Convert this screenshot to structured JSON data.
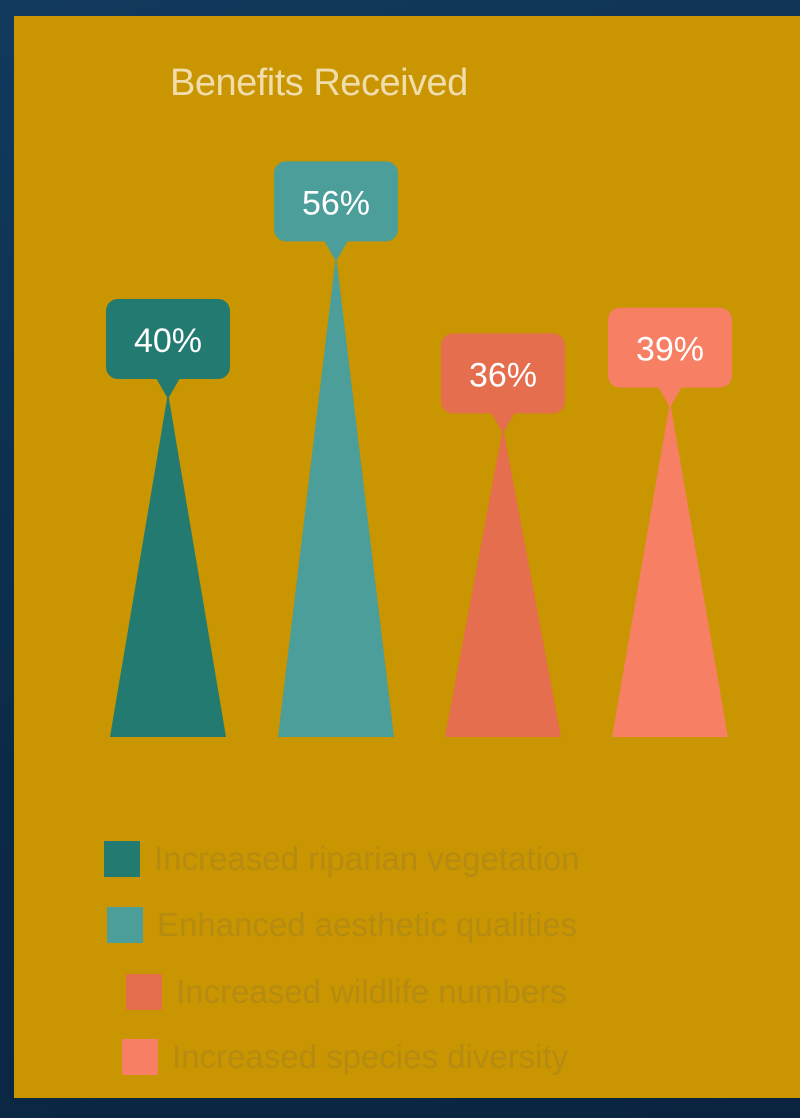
{
  "chart_data": {
    "type": "bar",
    "title": "Benefits Received",
    "categories": [
      "Increased riparian vegetation",
      "Enhanced aesthetic qualities",
      "Increased wildlife numbers",
      "Increased species diversity"
    ],
    "values": [
      40,
      56,
      36,
      39
    ],
    "value_labels": [
      "40%",
      "56%",
      "36%",
      "39%"
    ],
    "unit": "%",
    "mark_shape": "triangle",
    "colors": [
      "#227a70",
      "#4b9e99",
      "#e46e4d",
      "#f77f64"
    ],
    "legend": {
      "placement": "bottom",
      "entries": [
        "Increased riparian vegetation",
        "Enhanced aesthetic qualities",
        "Increased wildlife numbers",
        "Increased species diversity"
      ]
    },
    "grid": false,
    "axes_visible": false
  },
  "colors": {
    "panel_background": "#c99500",
    "page_background": "#0d2d4c",
    "title_text": "#f1dcab",
    "legend_text": "#b58b12",
    "callout_text": "#ffffff"
  }
}
